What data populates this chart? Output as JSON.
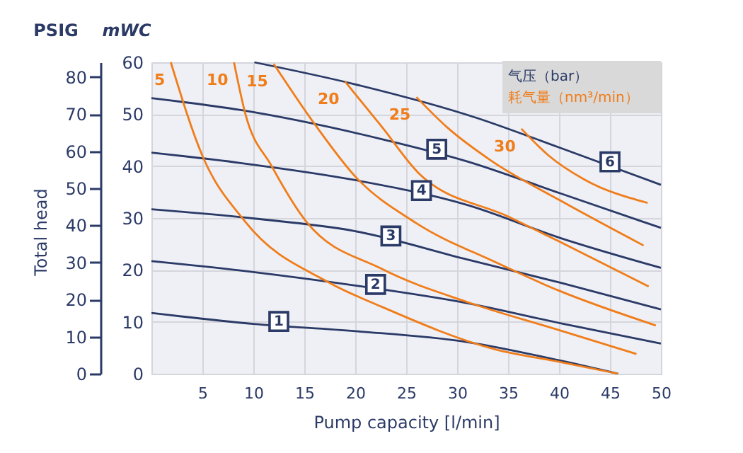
{
  "chart_data": {
    "type": "line",
    "xlabel": "Pump capacity [l/min]",
    "ylabel": "mWC",
    "y2label": "PSIG",
    "annotations": [
      "Total head",
      "气压（bar）",
      "耗气量（nm³/min）"
    ],
    "xlim": [
      0,
      50
    ],
    "xticks": [
      5,
      10,
      15,
      20,
      25,
      30,
      35,
      40,
      45,
      50
    ],
    "ylim": [
      0,
      60
    ],
    "yticks": [
      0,
      10,
      20,
      30,
      40,
      50,
      60
    ],
    "y2lim": [
      0,
      84
    ],
    "y2ticks": [
      0,
      10,
      20,
      30,
      40,
      50,
      60,
      70,
      80
    ],
    "grid": true,
    "line_style": "solid",
    "marker": "none",
    "series": [
      {
        "name": "1",
        "color": "#2b3a67",
        "x": [
          0,
          10,
          20,
          31,
          40.2,
          45.8
        ],
        "values": [
          11.7,
          9.6,
          8.2,
          6.1,
          2.5,
          0
        ]
      },
      {
        "name": "2",
        "color": "#2b3a67",
        "x": [
          0,
          10,
          20,
          31,
          40.2,
          50
        ],
        "values": [
          21.7,
          19.6,
          17.0,
          13.6,
          9.7,
          5.8
        ]
      },
      {
        "name": "3",
        "color": "#2b3a67",
        "x": [
          0,
          10.1,
          19.9,
          31,
          40.2,
          50
        ],
        "values": [
          31.7,
          29.9,
          27.5,
          22.0,
          17.5,
          12.4
        ]
      },
      {
        "name": "4",
        "color": "#2b3a67",
        "x": [
          0,
          8.75,
          20,
          31,
          40.2,
          50
        ],
        "values": [
          42.6,
          40.6,
          37.3,
          32.5,
          26.1,
          20.4
        ]
      },
      {
        "name": "5",
        "color": "#2b3a67",
        "x": [
          0,
          8.75,
          22.6,
          31,
          40.2,
          50
        ],
        "values": [
          53.1,
          50.8,
          45.2,
          40.9,
          34.7,
          28.1
        ]
      },
      {
        "name": "6",
        "color": "#2b3a67",
        "x": [
          10.1,
          19.9,
          31.9,
          40,
          50
        ],
        "values": [
          60,
          55.8,
          49.3,
          43.6,
          36.4
        ]
      },
      {
        "name": "5",
        "color": "#f07d1a",
        "x": [
          1.9,
          5,
          9.2,
          17.5,
          22.6,
          33.75,
          40,
          45.8
        ],
        "values": [
          60,
          42,
          29.3,
          17.5,
          12.9,
          4.7,
          2.3,
          0
        ]
      },
      {
        "name": "10",
        "color": "#f07d1a",
        "x": [
          8.1,
          9.2,
          11.8,
          15.2,
          22.6,
          31,
          40,
          47.6
        ],
        "values": [
          60,
          50.2,
          40,
          29.3,
          20.2,
          13.8,
          8.4,
          3.8
        ]
      },
      {
        "name": "15",
        "color": "#f07d1a",
        "x": [
          12,
          16.2,
          20,
          26,
          33.75,
          40,
          49.5
        ],
        "values": [
          59.7,
          47.6,
          38,
          29,
          21.5,
          16,
          9.3
        ]
      },
      {
        "name": "20",
        "color": "#f07d1a",
        "x": [
          19,
          22.6,
          26.3,
          35.1,
          40,
          48.8
        ],
        "values": [
          56.3,
          47.6,
          38.5,
          30.2,
          25.5,
          16.8
        ]
      },
      {
        "name": "25",
        "color": "#f07d1a",
        "x": [
          26,
          29,
          33.3,
          40,
          48.3
        ],
        "values": [
          53.3,
          47.5,
          41.1,
          33.5,
          24.7
        ]
      },
      {
        "name": "30",
        "color": "#f07d1a",
        "x": [
          36.3,
          39,
          42.5,
          48.7
        ],
        "values": [
          47.2,
          42,
          37.4,
          32.9
        ]
      }
    ]
  }
}
